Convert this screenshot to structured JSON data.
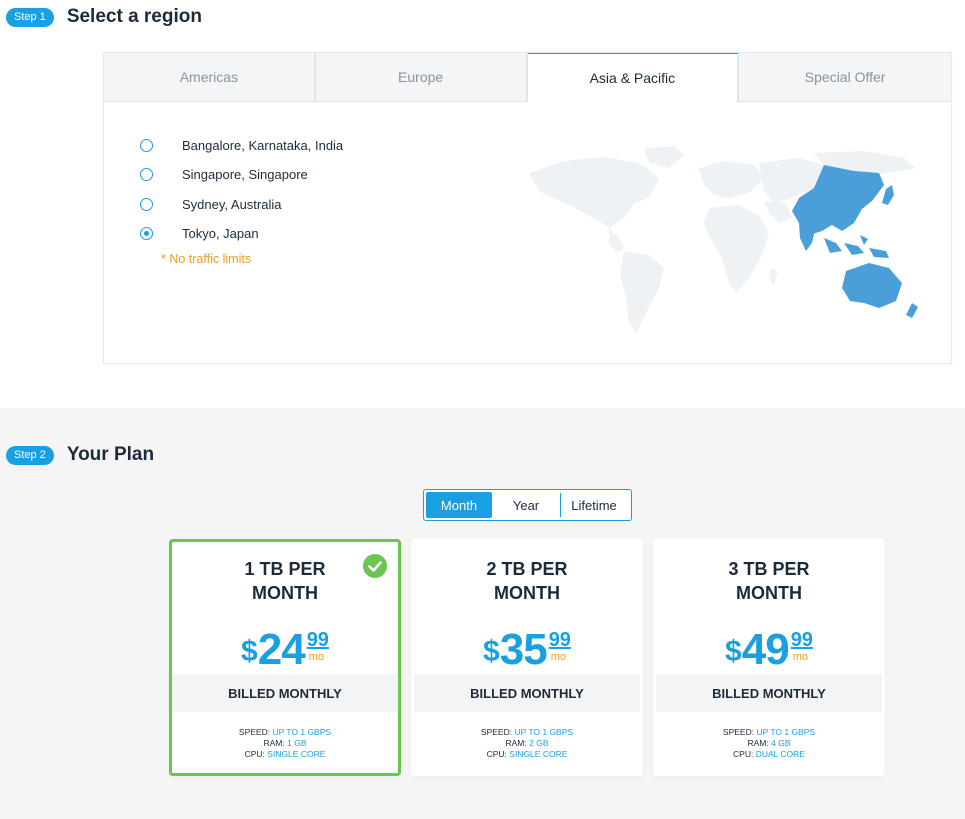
{
  "step1": {
    "badge": "Step 1",
    "title": "Select a region"
  },
  "region": {
    "tabs": [
      {
        "label": "Americas",
        "active": false
      },
      {
        "label": "Europe",
        "active": false
      },
      {
        "label": "Asia & Pacific",
        "active": true
      },
      {
        "label": "Special Offer",
        "active": false
      }
    ],
    "locations": [
      {
        "label": "Bangalore, Karnataka, India",
        "selected": false
      },
      {
        "label": "Singapore, Singapore",
        "selected": false
      },
      {
        "label": "Sydney, Australia",
        "selected": false
      },
      {
        "label": "Tokyo, Japan",
        "selected": true
      }
    ],
    "note": "* No traffic limits"
  },
  "step2": {
    "badge": "Step 2",
    "title": "Your Plan"
  },
  "billing_toggle": {
    "options": [
      "Month",
      "Year",
      "Lifetime"
    ],
    "active": "Month"
  },
  "plans": [
    {
      "name_line1": "1 TB PER",
      "name_line2": "MONTH",
      "dollar": "$",
      "price": "24",
      "cents": "99",
      "unit": "mo",
      "billed": "BILLED MONTHLY",
      "speed_label": "SPEED:",
      "speed": "UP TO 1 GBPS",
      "ram_label": "RAM:",
      "ram": "1 GB",
      "cpu_label": "CPU:",
      "cpu": "SINGLE CORE",
      "selected": true
    },
    {
      "name_line1": "2 TB PER",
      "name_line2": "MONTH",
      "dollar": "$",
      "price": "35",
      "cents": "99",
      "unit": "mo",
      "billed": "BILLED MONTHLY",
      "speed_label": "SPEED:",
      "speed": "UP TO 1 GBPS",
      "ram_label": "RAM:",
      "ram": "2 GB",
      "cpu_label": "CPU:",
      "cpu": "SINGLE CORE",
      "selected": false
    },
    {
      "name_line1": "3 TB PER",
      "name_line2": "MONTH",
      "dollar": "$",
      "price": "49",
      "cents": "99",
      "unit": "mo",
      "billed": "BILLED MONTHLY",
      "speed_label": "SPEED:",
      "speed": "UP TO 1 GBPS",
      "ram_label": "RAM:",
      "ram": "4 GB",
      "cpu_label": "CPU:",
      "cpu": "DUAL CORE",
      "selected": false
    }
  ],
  "colors": {
    "accent": "#1a9fe0",
    "selected_border": "#6cc551",
    "note": "#f39a1b",
    "map_base": "#eef2f4",
    "map_highlight": "#4a9fd8"
  },
  "icons": {
    "selected_plan": "check-circle-icon",
    "map": "world-map-icon"
  }
}
